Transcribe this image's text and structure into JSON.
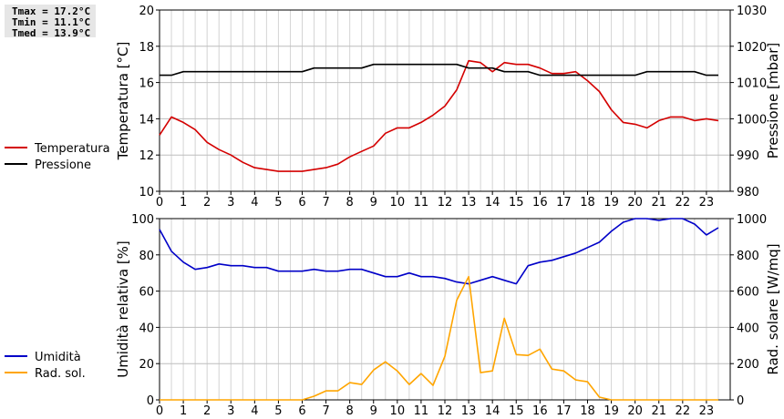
{
  "stats": {
    "tmax": "Tmax = 17.2°C",
    "tmin": "Tmin = 11.1°C",
    "tmed": "Tmed = 13.9°C"
  },
  "chart_data": [
    {
      "type": "line",
      "x_ticks": [
        0,
        1,
        2,
        3,
        4,
        5,
        6,
        7,
        8,
        9,
        10,
        11,
        12,
        13,
        14,
        15,
        16,
        17,
        18,
        19,
        20,
        21,
        22,
        23
      ],
      "x_range": [
        0,
        24
      ],
      "grid": true,
      "legend_position": "left",
      "left_axis": {
        "label": "Temperatura [°C]",
        "range": [
          10,
          20
        ],
        "ticks": [
          10,
          12,
          14,
          16,
          18,
          20
        ]
      },
      "right_axis": {
        "label": "Pressione [mbar]",
        "range": [
          980,
          1030
        ],
        "ticks": [
          980,
          990,
          1000,
          1010,
          1020,
          1030
        ]
      },
      "series": [
        {
          "name": "Temperatura",
          "axis": "left",
          "color": "#d40000",
          "x": [
            0,
            0.5,
            1,
            1.5,
            2,
            2.5,
            3,
            3.5,
            4,
            4.5,
            5,
            5.5,
            6,
            6.5,
            7,
            7.5,
            8,
            8.5,
            9,
            9.5,
            10,
            10.5,
            11,
            11.5,
            12,
            12.5,
            13,
            13.5,
            14,
            14.5,
            15,
            15.5,
            16,
            16.5,
            17,
            17.5,
            18,
            18.5,
            19,
            19.5,
            20,
            20.5,
            21,
            21.5,
            22,
            22.5,
            23,
            23.5
          ],
          "y": [
            13.1,
            14.1,
            13.8,
            13.4,
            12.7,
            12.3,
            12.0,
            11.6,
            11.3,
            11.2,
            11.1,
            11.1,
            11.1,
            11.2,
            11.3,
            11.5,
            11.9,
            12.2,
            12.5,
            13.2,
            13.5,
            13.5,
            13.8,
            14.2,
            14.7,
            15.6,
            17.2,
            17.1,
            16.6,
            17.1,
            17.0,
            17.0,
            16.8,
            16.5,
            16.5,
            16.6,
            16.1,
            15.5,
            14.5,
            13.8,
            13.7,
            13.5,
            13.9,
            14.1,
            14.1,
            13.9,
            14.0,
            13.9
          ]
        },
        {
          "name": "Pressione",
          "axis": "right",
          "color": "#000000",
          "x": [
            0,
            0.5,
            1,
            1.5,
            2,
            2.5,
            3,
            3.5,
            4,
            4.5,
            5,
            5.5,
            6,
            6.5,
            7,
            7.5,
            8,
            8.5,
            9,
            9.5,
            10,
            10.5,
            11,
            11.5,
            12,
            12.5,
            13,
            13.5,
            14,
            14.5,
            15,
            15.5,
            16,
            16.5,
            17,
            17.5,
            18,
            18.5,
            19,
            19.5,
            20,
            20.5,
            21,
            21.5,
            22,
            22.5,
            23,
            23.5
          ],
          "y": [
            1012,
            1012,
            1013,
            1013,
            1013,
            1013,
            1013,
            1013,
            1013,
            1013,
            1013,
            1013,
            1013,
            1014,
            1014,
            1014,
            1014,
            1014,
            1015,
            1015,
            1015,
            1015,
            1015,
            1015,
            1015,
            1015,
            1014,
            1014,
            1014,
            1013,
            1013,
            1013,
            1012,
            1012,
            1012,
            1012,
            1012,
            1012,
            1012,
            1012,
            1012,
            1013,
            1013,
            1013,
            1013,
            1013,
            1012,
            1012
          ]
        }
      ]
    },
    {
      "type": "line",
      "x_ticks": [
        0,
        1,
        2,
        3,
        4,
        5,
        6,
        7,
        8,
        9,
        10,
        11,
        12,
        13,
        14,
        15,
        16,
        17,
        18,
        19,
        20,
        21,
        22,
        23
      ],
      "x_range": [
        0,
        24
      ],
      "grid": true,
      "legend_position": "left",
      "left_axis": {
        "label": "Umidità relativa [%]",
        "range": [
          0,
          100
        ],
        "ticks": [
          0,
          20,
          40,
          60,
          80,
          100
        ]
      },
      "right_axis": {
        "label": "Rad. solare [W/mq]",
        "range": [
          0,
          1000
        ],
        "ticks": [
          0,
          200,
          400,
          600,
          800,
          1000
        ]
      },
      "series": [
        {
          "name": "Umidità",
          "axis": "left",
          "color": "#0000c8",
          "x": [
            0,
            0.5,
            1,
            1.5,
            2,
            2.5,
            3,
            3.5,
            4,
            4.5,
            5,
            5.5,
            6,
            6.5,
            7,
            7.5,
            8,
            8.5,
            9,
            9.5,
            10,
            10.5,
            11,
            11.5,
            12,
            12.5,
            13,
            13.5,
            14,
            14.5,
            15,
            15.5,
            16,
            16.5,
            17,
            17.5,
            18,
            18.5,
            19,
            19.5,
            20,
            20.5,
            21,
            21.5,
            22,
            22.5,
            23,
            23.5
          ],
          "y": [
            94,
            82,
            76,
            72,
            73,
            75,
            74,
            74,
            73,
            73,
            71,
            71,
            71,
            72,
            71,
            71,
            72,
            72,
            70,
            68,
            68,
            70,
            68,
            68,
            67,
            65,
            64,
            66,
            68,
            66,
            64,
            74,
            76,
            77,
            79,
            81,
            84,
            87,
            93,
            98,
            100,
            100,
            99,
            100,
            100,
            97,
            91,
            95
          ]
        },
        {
          "name": "Rad. sol.",
          "axis": "right",
          "color": "#ffa500",
          "x": [
            0,
            0.5,
            1,
            1.5,
            2,
            2.5,
            3,
            3.5,
            4,
            4.5,
            5,
            5.5,
            6,
            6.5,
            7,
            7.5,
            8,
            8.5,
            9,
            9.5,
            10,
            10.5,
            11,
            11.5,
            12,
            12.5,
            13,
            13.5,
            14,
            14.5,
            15,
            15.5,
            16,
            16.5,
            17,
            17.5,
            18,
            18.5,
            19,
            19.5,
            20,
            20.5,
            21,
            21.5,
            22,
            22.5,
            23,
            23.5
          ],
          "y": [
            0,
            0,
            0,
            0,
            0,
            0,
            0,
            0,
            0,
            0,
            0,
            0,
            0,
            20,
            50,
            50,
            95,
            85,
            165,
            210,
            160,
            85,
            145,
            80,
            240,
            550,
            680,
            150,
            160,
            450,
            250,
            245,
            280,
            170,
            160,
            110,
            100,
            15,
            0,
            0,
            0,
            0,
            0,
            0,
            0,
            0,
            0,
            0
          ]
        }
      ]
    }
  ]
}
